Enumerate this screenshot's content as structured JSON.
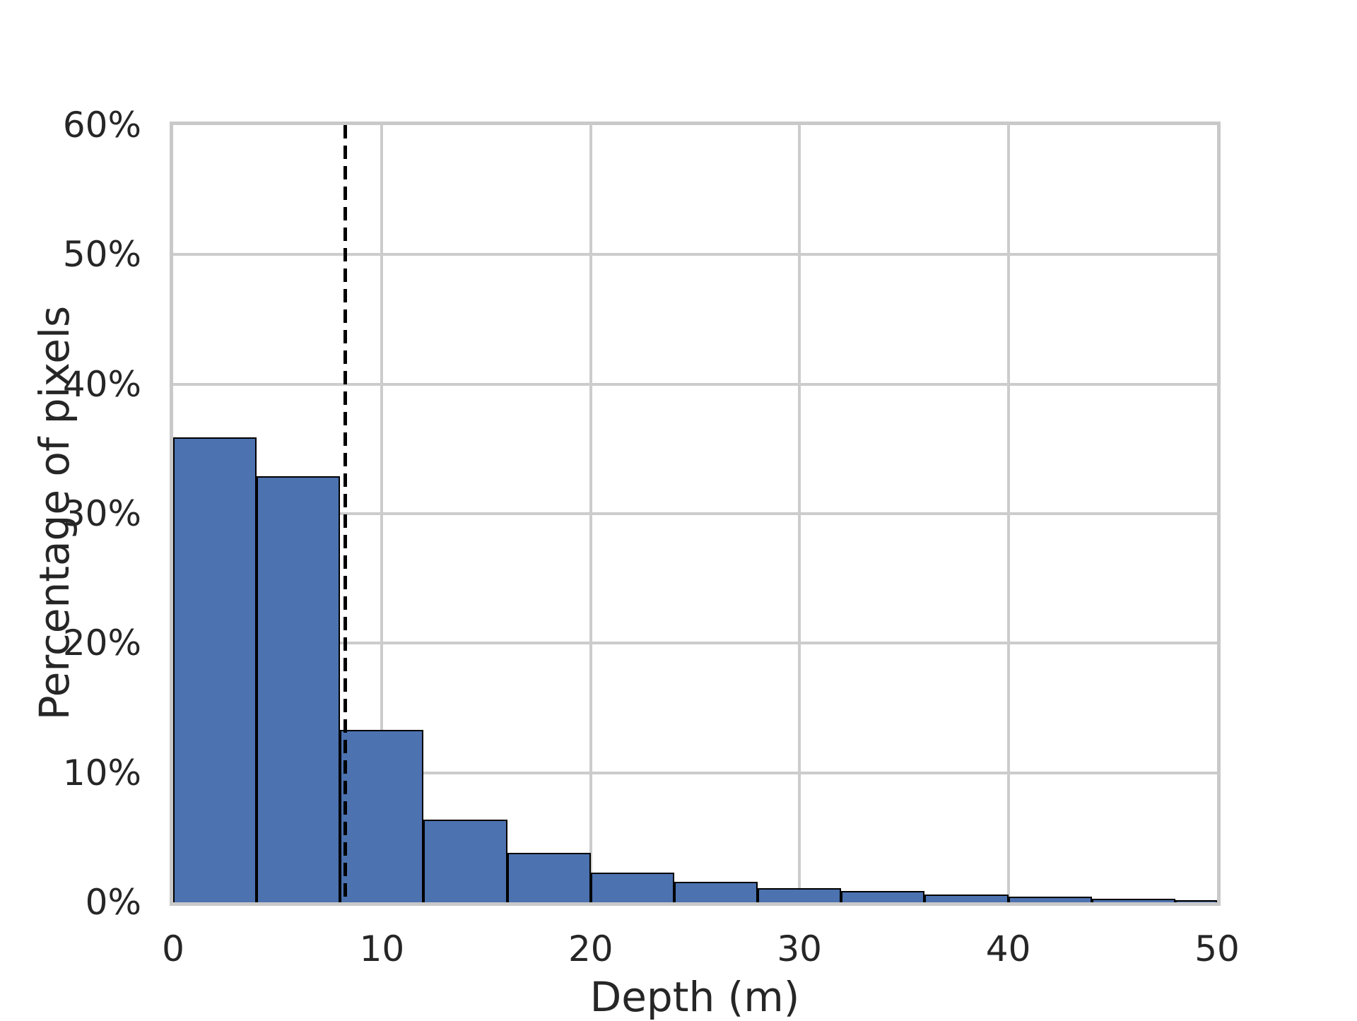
{
  "chart_data": {
    "type": "bar",
    "subtype": "histogram",
    "title": "",
    "xlabel": "Depth (m)",
    "ylabel": "Percentage of pixels",
    "xlim": [
      0,
      50
    ],
    "ylim": [
      0,
      60
    ],
    "grid": true,
    "legend": false,
    "x_ticks": {
      "values": [
        0,
        10,
        20,
        30,
        40,
        50
      ],
      "labels": [
        "0",
        "10",
        "20",
        "30",
        "40",
        "50"
      ]
    },
    "y_ticks": {
      "values": [
        0,
        10,
        20,
        30,
        40,
        50,
        60
      ],
      "labels": [
        "0%",
        "10%",
        "20%",
        "30%",
        "40%",
        "50%",
        "60%"
      ]
    },
    "bins": [
      {
        "x0": 0,
        "x1": 4,
        "pct": 35.9
      },
      {
        "x0": 4,
        "x1": 8,
        "pct": 32.9
      },
      {
        "x0": 8,
        "x1": 12,
        "pct": 13.3
      },
      {
        "x0": 12,
        "x1": 16,
        "pct": 6.4
      },
      {
        "x0": 16,
        "x1": 20,
        "pct": 3.8
      },
      {
        "x0": 20,
        "x1": 24,
        "pct": 2.3
      },
      {
        "x0": 24,
        "x1": 28,
        "pct": 1.6
      },
      {
        "x0": 28,
        "x1": 32,
        "pct": 1.1
      },
      {
        "x0": 32,
        "x1": 36,
        "pct": 0.85
      },
      {
        "x0": 36,
        "x1": 40,
        "pct": 0.6
      },
      {
        "x0": 40,
        "x1": 44,
        "pct": 0.45
      },
      {
        "x0": 44,
        "x1": 48,
        "pct": 0.3
      },
      {
        "x0": 48,
        "x1": 50,
        "pct": 0.15
      }
    ],
    "vline": {
      "x": 8.25,
      "style": "dashed",
      "color": "#000000"
    },
    "colors": {
      "bar_fill": "#4C72B0",
      "bar_edge": "#000000",
      "gridline": "#CCCCCC",
      "spine": "#C9C9C9",
      "text": "#262626",
      "background": "#FFFFFF"
    }
  }
}
